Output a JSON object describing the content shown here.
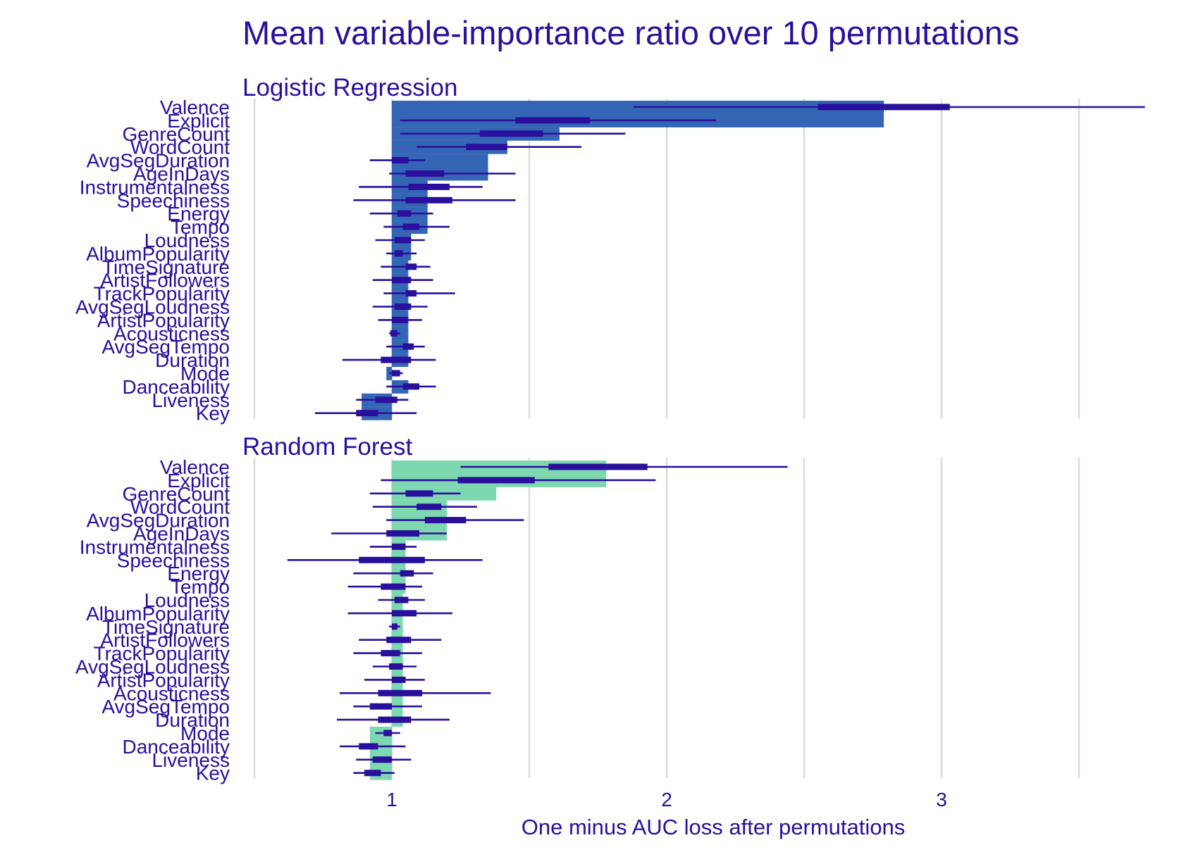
{
  "chart_data": {
    "type": "bar",
    "title": "Mean variable-importance ratio over 10 permutations",
    "xlabel": "One minus AUC loss after permutations",
    "ylabel": "",
    "xlim": [
      0.5,
      3.5
    ],
    "xticks": [
      1,
      2,
      3
    ],
    "grid": true,
    "baseline": 1,
    "colors": {
      "logistic_bar": "#3566b5",
      "forest_bar": "#7dd8b0",
      "boxplot": "#2a0f9c",
      "text": "#2a0f9c"
    },
    "categories": [
      "Valence",
      "Explicit",
      "GenreCount",
      "WordCount",
      "AvgSegDuration",
      "AgeInDays",
      "Instrumentalness",
      "Speechiness",
      "Energy",
      "Tempo",
      "Loudness",
      "AlbumPopularity",
      "TimeSignature",
      "ArtistFollowers",
      "TrackPopularity",
      "AvgSegLoudness",
      "ArtistPopularity",
      "Acousticness",
      "AvgSegTempo",
      "Duration",
      "Mode",
      "Danceability",
      "Liveness",
      "Key"
    ],
    "panels": [
      {
        "name": "Logistic Regression",
        "bar_color": "#3566b5",
        "values": [
          2.79,
          2.79,
          1.61,
          1.42,
          1.35,
          1.35,
          1.13,
          1.13,
          1.13,
          1.13,
          1.07,
          1.07,
          1.06,
          1.06,
          1.06,
          1.06,
          1.06,
          1.06,
          1.06,
          1.06,
          0.98,
          1.06,
          0.89,
          0.89
        ],
        "boxes": [
          {
            "min": 1.88,
            "q1": 2.55,
            "q3": 3.03,
            "max": 3.74
          },
          {
            "min": 1.03,
            "q1": 1.45,
            "q3": 1.72,
            "max": 2.18
          },
          {
            "min": 1.03,
            "q1": 1.32,
            "q3": 1.55,
            "max": 1.85
          },
          {
            "min": 1.09,
            "q1": 1.27,
            "q3": 1.42,
            "max": 1.69
          },
          {
            "min": 0.92,
            "q1": 1.0,
            "q3": 1.06,
            "max": 1.12
          },
          {
            "min": 0.99,
            "q1": 1.05,
            "q3": 1.19,
            "max": 1.45
          },
          {
            "min": 0.88,
            "q1": 1.06,
            "q3": 1.21,
            "max": 1.33
          },
          {
            "min": 0.86,
            "q1": 1.05,
            "q3": 1.22,
            "max": 1.45
          },
          {
            "min": 0.92,
            "q1": 1.02,
            "q3": 1.07,
            "max": 1.15
          },
          {
            "min": 0.97,
            "q1": 1.04,
            "q3": 1.1,
            "max": 1.21
          },
          {
            "min": 0.94,
            "q1": 1.01,
            "q3": 1.07,
            "max": 1.12
          },
          {
            "min": 0.98,
            "q1": 1.01,
            "q3": 1.04,
            "max": 1.09
          },
          {
            "min": 0.96,
            "q1": 1.05,
            "q3": 1.09,
            "max": 1.14
          },
          {
            "min": 0.93,
            "q1": 1.0,
            "q3": 1.07,
            "max": 1.15
          },
          {
            "min": 0.97,
            "q1": 1.05,
            "q3": 1.09,
            "max": 1.23
          },
          {
            "min": 0.93,
            "q1": 1.01,
            "q3": 1.07,
            "max": 1.13
          },
          {
            "min": 0.95,
            "q1": 1.0,
            "q3": 1.06,
            "max": 1.11
          },
          {
            "min": 0.99,
            "q1": 0.995,
            "q3": 1.02,
            "max": 1.03
          },
          {
            "min": 0.98,
            "q1": 1.04,
            "q3": 1.08,
            "max": 1.12
          },
          {
            "min": 0.82,
            "q1": 0.96,
            "q3": 1.07,
            "max": 1.16
          },
          {
            "min": 0.99,
            "q1": 1.0,
            "q3": 1.03,
            "max": 1.04
          },
          {
            "min": 0.98,
            "q1": 1.04,
            "q3": 1.1,
            "max": 1.16
          },
          {
            "min": 0.87,
            "q1": 0.94,
            "q3": 1.02,
            "max": 1.06
          },
          {
            "min": 0.72,
            "q1": 0.87,
            "q3": 0.95,
            "max": 1.09
          }
        ]
      },
      {
        "name": "Random Forest",
        "bar_color": "#7dd8b0",
        "values": [
          1.78,
          1.78,
          1.38,
          1.2,
          1.2,
          1.2,
          1.05,
          1.05,
          1.05,
          1.05,
          1.04,
          1.04,
          1.04,
          1.04,
          1.04,
          1.04,
          1.04,
          1.04,
          1.04,
          1.04,
          0.92,
          0.92,
          0.92,
          0.92
        ],
        "boxes": [
          {
            "min": 1.25,
            "q1": 1.57,
            "q3": 1.93,
            "max": 2.44
          },
          {
            "min": 0.96,
            "q1": 1.24,
            "q3": 1.52,
            "max": 1.96
          },
          {
            "min": 0.92,
            "q1": 1.05,
            "q3": 1.15,
            "max": 1.25
          },
          {
            "min": 0.93,
            "q1": 1.09,
            "q3": 1.18,
            "max": 1.31
          },
          {
            "min": 0.98,
            "q1": 1.12,
            "q3": 1.27,
            "max": 1.48
          },
          {
            "min": 0.78,
            "q1": 0.98,
            "q3": 1.1,
            "max": 1.2
          },
          {
            "min": 0.92,
            "q1": 1.0,
            "q3": 1.05,
            "max": 1.09
          },
          {
            "min": 0.62,
            "q1": 0.88,
            "q3": 1.12,
            "max": 1.33
          },
          {
            "min": 0.86,
            "q1": 1.03,
            "q3": 1.08,
            "max": 1.15
          },
          {
            "min": 0.84,
            "q1": 0.96,
            "q3": 1.05,
            "max": 1.11
          },
          {
            "min": 0.95,
            "q1": 1.01,
            "q3": 1.06,
            "max": 1.12
          },
          {
            "min": 0.84,
            "q1": 1.0,
            "q3": 1.09,
            "max": 1.22
          },
          {
            "min": 0.99,
            "q1": 1.0,
            "q3": 1.02,
            "max": 1.03
          },
          {
            "min": 0.88,
            "q1": 0.98,
            "q3": 1.07,
            "max": 1.18
          },
          {
            "min": 0.86,
            "q1": 0.96,
            "q3": 1.03,
            "max": 1.11
          },
          {
            "min": 0.93,
            "q1": 0.99,
            "q3": 1.04,
            "max": 1.09
          },
          {
            "min": 0.9,
            "q1": 1.0,
            "q3": 1.05,
            "max": 1.12
          },
          {
            "min": 0.81,
            "q1": 0.95,
            "q3": 1.11,
            "max": 1.36
          },
          {
            "min": 0.86,
            "q1": 0.92,
            "q3": 1.0,
            "max": 1.11
          },
          {
            "min": 0.8,
            "q1": 0.95,
            "q3": 1.07,
            "max": 1.21
          },
          {
            "min": 0.94,
            "q1": 0.97,
            "q3": 1.0,
            "max": 1.03
          },
          {
            "min": 0.81,
            "q1": 0.88,
            "q3": 0.95,
            "max": 1.05
          },
          {
            "min": 0.87,
            "q1": 0.93,
            "q3": 1.0,
            "max": 1.07
          },
          {
            "min": 0.86,
            "q1": 0.9,
            "q3": 0.96,
            "max": 1.01
          }
        ]
      }
    ]
  }
}
